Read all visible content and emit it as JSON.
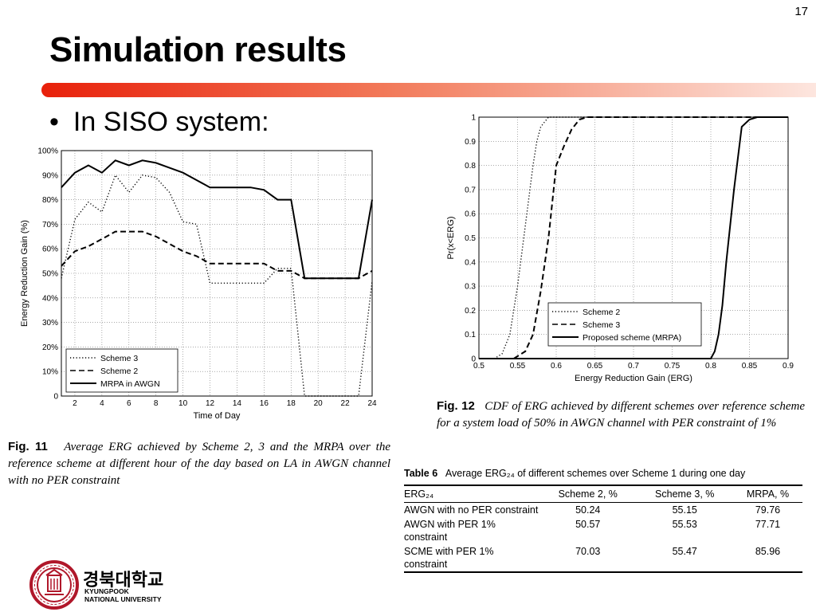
{
  "slide": {
    "number": "17",
    "title": "Simulation results",
    "bullet": "In SISO system:"
  },
  "colors": {
    "accent": "#e8200a"
  },
  "fig11": {
    "caption_label": "Fig. 11",
    "caption_text": "Average ERG achieved by Scheme 2, 3 and the MRPA over the reference scheme at different hour of the day based on LA in AWGN channel with no PER constraint"
  },
  "fig12": {
    "caption_label": "Fig. 12",
    "caption_text": "CDF of ERG achieved by different schemes over reference scheme for a system load of 50% in AWGN channel with PER constraint of 1%"
  },
  "table6": {
    "caption_label": "Table 6",
    "caption_text": "Average ERG₂₄ of different schemes over Scheme 1 during one day",
    "headers": [
      "ERG₂₄",
      "Scheme 2, %",
      "Scheme 3, %",
      "MRPA, %"
    ],
    "rows": [
      {
        "label": "AWGN with no PER constraint",
        "scheme2": "50.24",
        "scheme3": "55.15",
        "mrpa": "79.76"
      },
      {
        "label": "AWGN with PER 1% constraint",
        "scheme2": "50.57",
        "scheme3": "55.53",
        "mrpa": "77.71"
      },
      {
        "label": "SCME with PER 1% constraint",
        "scheme2": "70.03",
        "scheme3": "55.47",
        "mrpa": "85.96"
      }
    ]
  },
  "logo": {
    "korean_name": "경북대학교",
    "english_name_line1": "KYUNGPOOK",
    "english_name_line2": "NATIONAL UNIVERSITY"
  },
  "chart_data": [
    {
      "type": "line",
      "xlabel": "Time of Day",
      "ylabel": "Energy Reduction Gain (%)",
      "xlim": [
        1,
        24
      ],
      "ylim": [
        0,
        100
      ],
      "xticks": [
        2,
        4,
        6,
        8,
        10,
        12,
        14,
        16,
        18,
        20,
        22,
        24
      ],
      "yticks": [
        0,
        10,
        20,
        30,
        40,
        50,
        60,
        70,
        80,
        90,
        100
      ],
      "ytick_labels": [
        "0",
        "10%",
        "20%",
        "30%",
        "40%",
        "50%",
        "60%",
        "70%",
        "80%",
        "90%",
        "100%"
      ],
      "grid": true,
      "legend_position": "bottom-left",
      "series": [
        {
          "name": "Scheme 3",
          "style": "dotted",
          "x": [
            1,
            2,
            3,
            4,
            5,
            6,
            7,
            8,
            9,
            10,
            11,
            12,
            13,
            14,
            15,
            16,
            17,
            18,
            19,
            20,
            21,
            22,
            23,
            24
          ],
          "y": [
            48,
            72,
            79,
            75,
            90,
            83,
            90,
            89,
            83,
            71,
            70,
            46,
            46,
            46,
            46,
            46,
            52,
            52,
            0,
            0,
            0,
            0,
            0,
            47
          ]
        },
        {
          "name": "Scheme 2",
          "style": "dashed",
          "x": [
            1,
            2,
            3,
            4,
            5,
            6,
            7,
            8,
            9,
            10,
            11,
            12,
            13,
            14,
            15,
            16,
            17,
            18,
            19,
            20,
            21,
            22,
            23,
            24
          ],
          "y": [
            53,
            59,
            61,
            64,
            67,
            67,
            67,
            65,
            62,
            59,
            57,
            54,
            54,
            54,
            54,
            54,
            51,
            51,
            48,
            48,
            48,
            48,
            48,
            51
          ]
        },
        {
          "name": "MRPA in AWGN",
          "style": "solid",
          "x": [
            1,
            2,
            3,
            4,
            5,
            6,
            7,
            8,
            9,
            10,
            11,
            12,
            13,
            14,
            15,
            16,
            17,
            18,
            19,
            20,
            21,
            22,
            23,
            24
          ],
          "y": [
            85,
            91,
            94,
            91,
            96,
            94,
            96,
            95,
            93,
            91,
            88,
            85,
            85,
            85,
            85,
            84,
            80,
            80,
            48,
            48,
            48,
            48,
            48,
            80
          ]
        }
      ]
    },
    {
      "type": "line",
      "xlabel": "Energy Reduction Gain (ERG)",
      "ylabel": "Pr(x<ERG)",
      "xlim": [
        0.5,
        0.9
      ],
      "ylim": [
        0,
        1
      ],
      "xticks": [
        0.5,
        0.55,
        0.6,
        0.65,
        0.7,
        0.75,
        0.8,
        0.85,
        0.9
      ],
      "xtick_labels": [
        "0.5",
        "0.55",
        "0.6",
        "0.65",
        "0.7",
        "0.75",
        "0.8",
        "0.85",
        "0.9"
      ],
      "yticks": [
        0,
        0.1,
        0.2,
        0.3,
        0.4,
        0.5,
        0.6,
        0.7,
        0.8,
        0.9,
        1
      ],
      "ytick_labels": [
        "0",
        "0.1",
        "0.2",
        "0.3",
        "0.4",
        "0.5",
        "0.6",
        "0.7",
        "0.8",
        "0.9",
        "1"
      ],
      "grid": true,
      "legend_position": "bottom-right",
      "series": [
        {
          "name": "Scheme 2",
          "style": "dotted",
          "x": [
            0.5,
            0.52,
            0.53,
            0.54,
            0.55,
            0.56,
            0.57,
            0.575,
            0.58,
            0.59,
            0.6,
            0.7,
            0.9
          ],
          "y": [
            0,
            0,
            0.02,
            0.1,
            0.3,
            0.55,
            0.8,
            0.9,
            0.96,
            1,
            1,
            1,
            1
          ]
        },
        {
          "name": "Scheme 3",
          "style": "dashed",
          "x": [
            0.5,
            0.545,
            0.56,
            0.57,
            0.58,
            0.59,
            0.6,
            0.61,
            0.62,
            0.63,
            0.64,
            0.7,
            0.9
          ],
          "y": [
            0,
            0,
            0.03,
            0.1,
            0.28,
            0.5,
            0.8,
            0.88,
            0.95,
            0.99,
            1,
            1,
            1
          ]
        },
        {
          "name": "Proposed scheme (MRPA)",
          "style": "solid",
          "x": [
            0.5,
            0.8,
            0.805,
            0.81,
            0.815,
            0.82,
            0.83,
            0.84,
            0.85,
            0.86,
            0.9
          ],
          "y": [
            0,
            0,
            0.03,
            0.1,
            0.22,
            0.4,
            0.7,
            0.96,
            0.99,
            1,
            1
          ]
        }
      ]
    }
  ]
}
